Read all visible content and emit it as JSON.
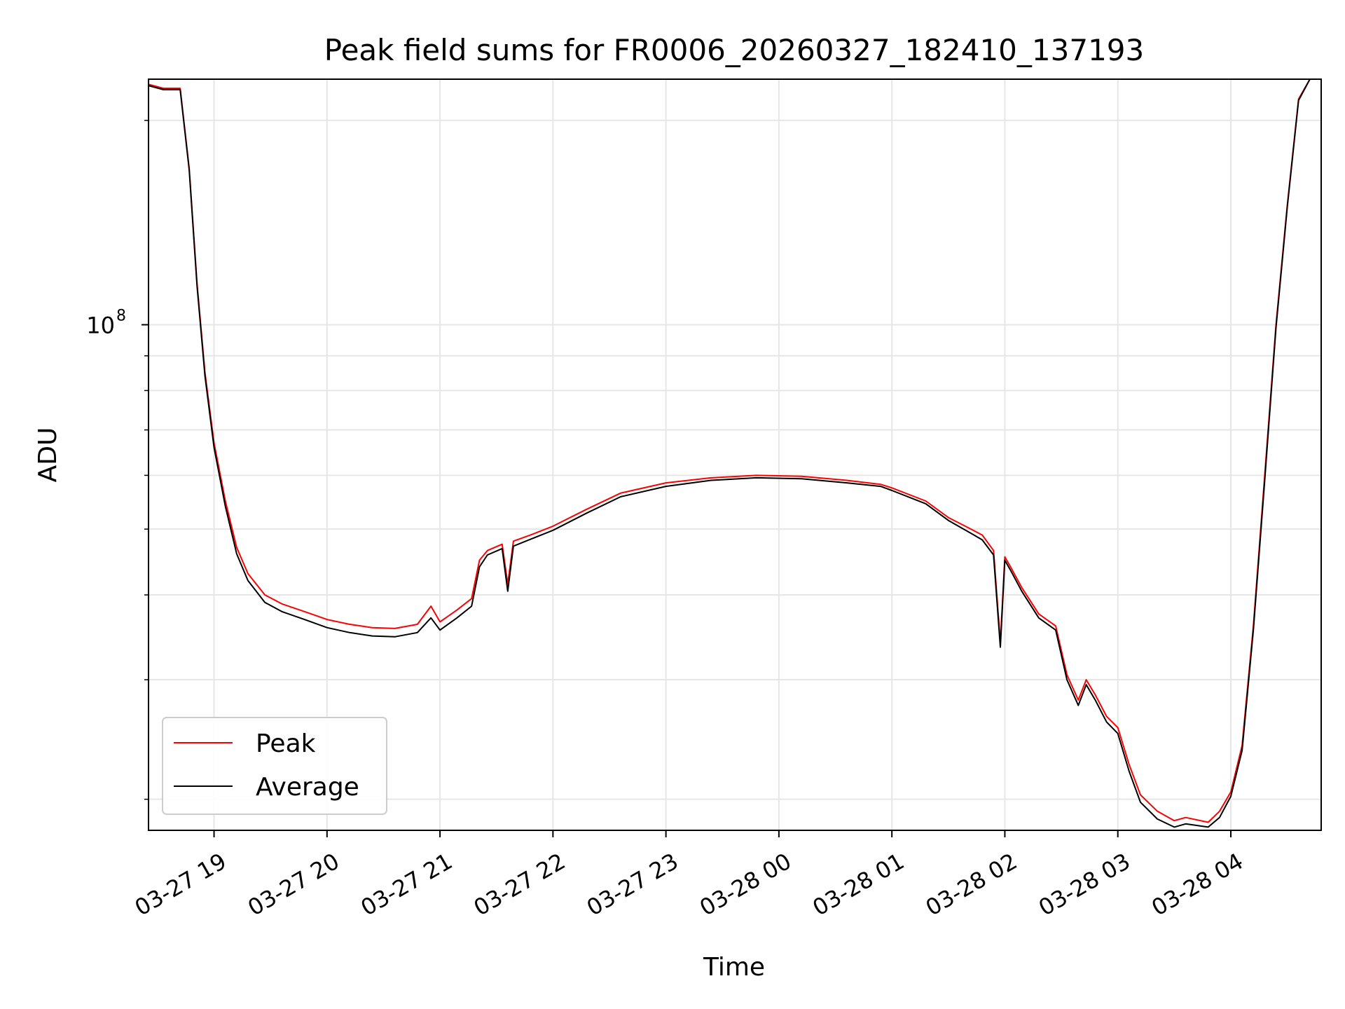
{
  "chart_data": {
    "type": "line",
    "title": "Peak field sums for FR0006_20260327_182410_137193",
    "xlabel": "Time",
    "ylabel": "ADU",
    "yscale": "log",
    "ylim": [
      18000000,
      230000000
    ],
    "xlim": [
      18.42,
      28.8
    ],
    "x_ticks": [
      {
        "value": 19,
        "label": "03-27 19"
      },
      {
        "value": 20,
        "label": "03-27 20"
      },
      {
        "value": 21,
        "label": "03-27 21"
      },
      {
        "value": 22,
        "label": "03-27 22"
      },
      {
        "value": 23,
        "label": "03-27 23"
      },
      {
        "value": 24,
        "label": "03-28 00"
      },
      {
        "value": 25,
        "label": "03-28 01"
      },
      {
        "value": 26,
        "label": "03-28 02"
      },
      {
        "value": 27,
        "label": "03-28 03"
      },
      {
        "value": 28,
        "label": "03-28 04"
      }
    ],
    "y_major_ticks": [
      {
        "value": 100000000,
        "base": "10",
        "exp": "8"
      }
    ],
    "y_minor_ticks": [
      20000000,
      30000000,
      40000000,
      50000000,
      60000000,
      70000000,
      80000000,
      90000000,
      200000000
    ],
    "grid": true,
    "legend_position": "bottom-left",
    "series": [
      {
        "name": "Peak",
        "color": "#ff0000",
        "x": [
          18.42,
          18.55,
          18.7,
          18.78,
          18.85,
          18.92,
          19.0,
          19.1,
          19.2,
          19.3,
          19.45,
          19.6,
          19.8,
          20.0,
          20.2,
          20.4,
          20.6,
          20.8,
          20.92,
          21.0,
          21.15,
          21.28,
          21.35,
          21.42,
          21.55,
          21.6,
          21.65,
          21.8,
          22.0,
          22.3,
          22.6,
          23.0,
          23.4,
          23.8,
          24.2,
          24.6,
          24.9,
          25.0,
          25.3,
          25.5,
          25.7,
          25.8,
          25.9,
          25.96,
          26.0,
          26.05,
          26.15,
          26.3,
          26.45,
          26.55,
          26.65,
          26.72,
          26.8,
          26.9,
          27.0,
          27.1,
          27.2,
          27.35,
          27.5,
          27.6,
          27.8,
          27.9,
          28.0,
          28.1,
          28.2,
          28.3,
          28.4,
          28.5,
          28.6,
          28.7,
          28.8
        ],
        "values": [
          226000000,
          223000000,
          223000000,
          170000000,
          115000000,
          85000000,
          67000000,
          55000000,
          47000000,
          43000000,
          40000000,
          38800000,
          37800000,
          36800000,
          36200000,
          35800000,
          35700000,
          36200000,
          38500000,
          36500000,
          38000000,
          39500000,
          45000000,
          46500000,
          47500000,
          41500000,
          48000000,
          49000000,
          50500000,
          53500000,
          56500000,
          58500000,
          59500000,
          60000000,
          59800000,
          59000000,
          58200000,
          57500000,
          55000000,
          52000000,
          50000000,
          49000000,
          46500000,
          34000000,
          45500000,
          44000000,
          41000000,
          37500000,
          36000000,
          30500000,
          28000000,
          30000000,
          28500000,
          26500000,
          25500000,
          22500000,
          20300000,
          19200000,
          18600000,
          18800000,
          18500000,
          19200000,
          20500000,
          24000000,
          36000000,
          60000000,
          100000000,
          150000000,
          215000000,
          230000000,
          230000000
        ]
      },
      {
        "name": "Average",
        "color": "#000000",
        "x": [
          18.42,
          18.55,
          18.7,
          18.78,
          18.85,
          18.92,
          19.0,
          19.1,
          19.2,
          19.3,
          19.45,
          19.6,
          19.8,
          20.0,
          20.2,
          20.4,
          20.6,
          20.8,
          20.92,
          21.0,
          21.15,
          21.28,
          21.35,
          21.42,
          21.55,
          21.6,
          21.65,
          21.8,
          22.0,
          22.3,
          22.6,
          23.0,
          23.4,
          23.8,
          24.2,
          24.6,
          24.9,
          25.0,
          25.3,
          25.5,
          25.7,
          25.8,
          25.9,
          25.96,
          26.0,
          26.05,
          26.15,
          26.3,
          26.45,
          26.55,
          26.65,
          26.72,
          26.8,
          26.9,
          27.0,
          27.1,
          27.2,
          27.35,
          27.5,
          27.6,
          27.8,
          27.9,
          28.0,
          28.1,
          28.2,
          28.3,
          28.4,
          28.5,
          28.6,
          28.7,
          28.8
        ],
        "values": [
          225000000,
          222000000,
          222000000,
          169000000,
          114000000,
          84000000,
          66000000,
          54000000,
          46000000,
          42000000,
          39000000,
          37800000,
          36800000,
          35800000,
          35200000,
          34800000,
          34700000,
          35200000,
          37000000,
          35500000,
          37000000,
          38500000,
          44000000,
          45800000,
          46800000,
          40500000,
          47200000,
          48300000,
          49800000,
          52800000,
          55800000,
          57800000,
          59000000,
          59500000,
          59300000,
          58500000,
          57800000,
          57000000,
          54500000,
          51500000,
          49300000,
          48200000,
          45800000,
          33500000,
          45000000,
          43500000,
          40500000,
          37000000,
          35500000,
          30000000,
          27500000,
          29500000,
          28000000,
          26000000,
          25000000,
          22000000,
          19800000,
          18700000,
          18200000,
          18400000,
          18200000,
          18800000,
          20200000,
          23600000,
          35500000,
          59000000,
          99000000,
          149000000,
          214000000,
          230000000,
          230000000
        ]
      }
    ]
  }
}
